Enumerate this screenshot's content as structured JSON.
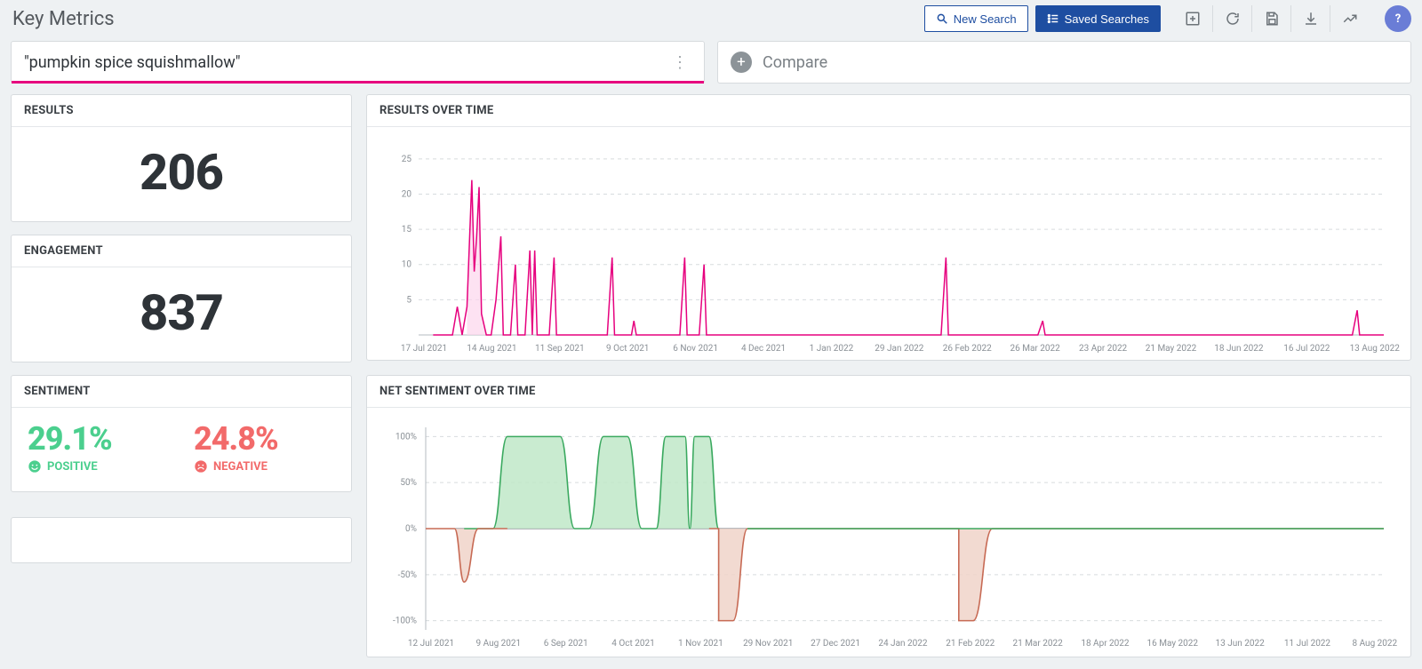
{
  "page": {
    "title": "Key Metrics"
  },
  "toolbar": {
    "new_search": "New Search",
    "saved_searches": "Saved Searches"
  },
  "query": {
    "text": "\"pumpkin spice squishmallow\"",
    "accent_color": "#e6007e"
  },
  "compare": {
    "label": "Compare"
  },
  "metrics": {
    "results": {
      "label": "RESULTS",
      "value": "206"
    },
    "engagement": {
      "label": "ENGAGEMENT",
      "value": "837"
    },
    "sentiment": {
      "label": "SENTIMENT",
      "positive": {
        "pct": "29.1%",
        "label": "POSITIVE",
        "color": "#4bcf8e"
      },
      "negative": {
        "pct": "24.8%",
        "label": "NEGATIVE",
        "color": "#f26a6a"
      }
    }
  },
  "results_chart": {
    "title": "RESULTS OVER TIME",
    "type": "line",
    "line_color": "#e6007e",
    "fill_color": "#fcd6ec",
    "background": "#ffffff",
    "grid_color": "#d7dbde",
    "ylim": [
      0,
      27
    ],
    "yticks": [
      5,
      10,
      15,
      20,
      25
    ],
    "xlabels": [
      "17 Jul 2021",
      "14 Aug 2021",
      "11 Sep 2021",
      "9 Oct 2021",
      "6 Nov 2021",
      "4 Dec 2021",
      "1 Jan 2022",
      "29 Jan 2022",
      "26 Feb 2022",
      "26 Mar 2022",
      "23 Apr 2022",
      "21 May 2022",
      "18 Jun 2022",
      "16 Jul 2022",
      "13 Aug 2022"
    ],
    "x_n": 400,
    "points": [
      [
        6,
        0
      ],
      [
        14,
        0
      ],
      [
        16,
        4
      ],
      [
        18,
        0
      ],
      [
        20,
        4
      ],
      [
        22,
        22
      ],
      [
        23,
        9
      ],
      [
        24,
        14
      ],
      [
        25,
        21
      ],
      [
        26,
        3
      ],
      [
        28,
        0
      ],
      [
        30,
        0
      ],
      [
        32,
        5
      ],
      [
        34,
        14
      ],
      [
        35,
        0
      ],
      [
        38,
        0
      ],
      [
        40,
        10
      ],
      [
        41,
        0
      ],
      [
        44,
        0
      ],
      [
        46,
        12
      ],
      [
        47,
        0
      ],
      [
        48,
        12
      ],
      [
        49,
        0
      ],
      [
        54,
        0
      ],
      [
        56,
        11
      ],
      [
        57,
        0
      ],
      [
        78,
        0
      ],
      [
        80,
        11
      ],
      [
        81,
        0
      ],
      [
        88,
        0
      ],
      [
        89,
        2
      ],
      [
        90,
        0
      ],
      [
        108,
        0
      ],
      [
        110,
        11
      ],
      [
        111,
        0
      ],
      [
        116,
        0
      ],
      [
        118,
        10
      ],
      [
        119,
        0
      ],
      [
        216,
        0
      ],
      [
        218,
        11
      ],
      [
        219,
        0
      ],
      [
        256,
        0
      ],
      [
        258,
        2
      ],
      [
        259,
        0
      ],
      [
        386,
        0
      ],
      [
        388,
        3.5
      ],
      [
        389,
        0
      ],
      [
        399,
        0
      ]
    ]
  },
  "sentiment_chart": {
    "title": "NET SENTIMENT OVER TIME",
    "type": "area",
    "pos_line": "#3aa95f",
    "pos_fill": "#bfe8c8",
    "neg_line": "#c76a54",
    "neg_fill": "#f0d4c9",
    "grid_color": "#d7dbde",
    "ylim": [
      -110,
      110
    ],
    "yticks": [
      -100,
      -50,
      0,
      50,
      100
    ],
    "ytick_labels": [
      "-100%",
      "-50%",
      "0%",
      "50%",
      "100%"
    ],
    "xlabels": [
      "12 Jul 2021",
      "9 Aug 2021",
      "6 Sep 2021",
      "4 Oct 2021",
      "1 Nov 2021",
      "29 Nov 2021",
      "27 Dec 2021",
      "24 Jan 2022",
      "21 Feb 2022",
      "21 Mar 2022",
      "18 Apr 2022",
      "16 May 2022",
      "13 Jun 2022",
      "11 Jul 2022",
      "8 Aug 2022"
    ],
    "x_n": 400,
    "points": [
      [
        0,
        0
      ],
      [
        12,
        0
      ],
      [
        16,
        -58
      ],
      [
        22,
        0
      ],
      [
        28,
        0
      ],
      [
        34,
        100
      ],
      [
        56,
        100
      ],
      [
        62,
        0
      ],
      [
        68,
        0
      ],
      [
        74,
        100
      ],
      [
        84,
        100
      ],
      [
        90,
        0
      ],
      [
        96,
        0
      ],
      [
        100,
        100
      ],
      [
        108,
        100
      ],
      [
        110,
        0
      ],
      [
        112,
        100
      ],
      [
        118,
        100
      ],
      [
        122,
        0
      ],
      [
        122,
        -100
      ],
      [
        128,
        -100
      ],
      [
        134,
        0
      ],
      [
        222,
        0
      ],
      [
        222,
        -100
      ],
      [
        228,
        -100
      ],
      [
        236,
        0
      ],
      [
        399,
        0
      ]
    ]
  }
}
